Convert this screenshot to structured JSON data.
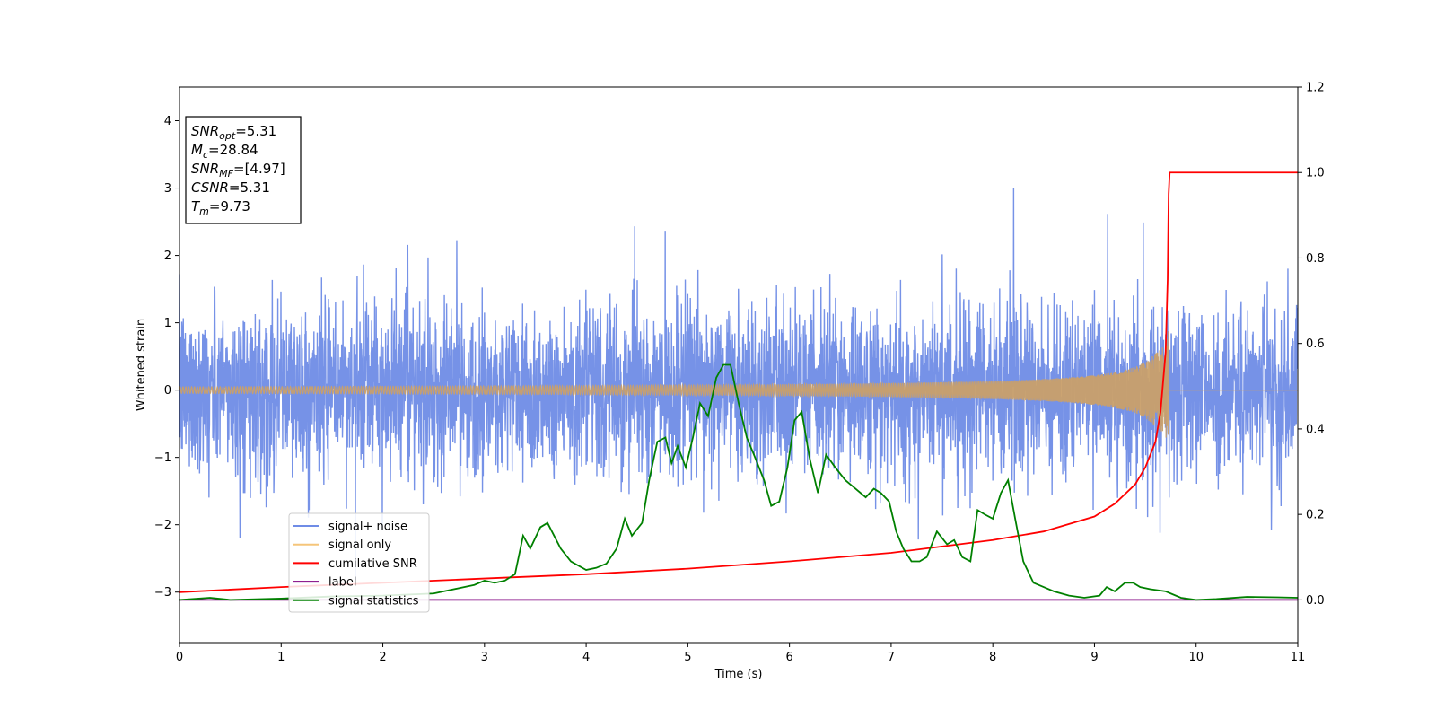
{
  "chart_data": {
    "type": "line",
    "xlabel": "Time (s)",
    "ylabel": "Whitened strain",
    "xlim": [
      0,
      11
    ],
    "ylim_left": [
      -3.75,
      4.5
    ],
    "ylim_right": [
      -0.1,
      1.2
    ],
    "x_ticks": [
      "0",
      "1",
      "2",
      "3",
      "4",
      "5",
      "6",
      "7",
      "8",
      "9",
      "10",
      "11"
    ],
    "y_ticks_left": [
      "−3",
      "−2",
      "−1",
      "0",
      "1",
      "2",
      "3",
      "4"
    ],
    "y_ticks_right": [
      "0.0",
      "0.2",
      "0.4",
      "0.6",
      "0.8",
      "1.0",
      "1.2"
    ],
    "annotation": {
      "lines": [
        {
          "var": "SNR",
          "sub": "opt",
          "val": "=5.31"
        },
        {
          "var": "M",
          "sub": "c",
          "val": "=28.84"
        },
        {
          "var": "SNR",
          "sub": "MF",
          "val": "=[4.97]"
        },
        {
          "var": "CSNR",
          "sub": "",
          "val": "=5.31"
        },
        {
          "var": "T",
          "sub": "m",
          "val": "=9.73"
        }
      ]
    },
    "legend_position": "lower-left",
    "series": [
      {
        "name": "signal+ noise",
        "color": "#6f8ce6",
        "axis": "left",
        "kind": "noise",
        "x_range": [
          0,
          11
        ],
        "typical_amplitude": 1.2,
        "peak_max": 3.0,
        "peak_min": -2.85
      },
      {
        "name": "signal only",
        "color": "#f5c57a",
        "axis": "left",
        "kind": "chirp",
        "x_range": [
          0,
          9.73
        ],
        "peak_amplitude": 0.9,
        "merger_time": 9.73
      },
      {
        "name": "cumilative SNR",
        "color": "#ff0000",
        "axis": "right",
        "x": [
          0,
          1,
          2,
          3,
          4,
          5,
          6,
          7,
          8,
          8.5,
          9,
          9.2,
          9.4,
          9.5,
          9.6,
          9.65,
          9.7,
          9.72,
          9.73,
          9.74,
          11
        ],
        "y": [
          0.018,
          0.03,
          0.04,
          0.05,
          0.06,
          0.073,
          0.09,
          0.11,
          0.14,
          0.16,
          0.195,
          0.225,
          0.27,
          0.31,
          0.37,
          0.44,
          0.58,
          0.75,
          0.95,
          1.0,
          1.0
        ]
      },
      {
        "name": "label",
        "color": "#800080",
        "axis": "right",
        "x": [
          0,
          11
        ],
        "y": [
          0.0,
          0.0
        ]
      },
      {
        "name": "signal statistics",
        "color": "#008000",
        "axis": "right",
        "x": [
          0,
          0.3,
          0.5,
          1.0,
          1.5,
          2.0,
          2.5,
          2.8,
          2.9,
          3.0,
          3.1,
          3.2,
          3.3,
          3.38,
          3.45,
          3.55,
          3.62,
          3.75,
          3.85,
          4.0,
          4.1,
          4.2,
          4.3,
          4.38,
          4.45,
          4.55,
          4.62,
          4.7,
          4.78,
          4.84,
          4.9,
          4.98,
          5.05,
          5.12,
          5.2,
          5.28,
          5.35,
          5.42,
          5.5,
          5.58,
          5.65,
          5.75,
          5.82,
          5.9,
          5.98,
          6.05,
          6.12,
          6.2,
          6.28,
          6.36,
          6.45,
          6.55,
          6.65,
          6.75,
          6.83,
          6.9,
          6.98,
          7.05,
          7.12,
          7.2,
          7.28,
          7.35,
          7.45,
          7.55,
          7.62,
          7.7,
          7.78,
          7.85,
          7.92,
          8.0,
          8.08,
          8.15,
          8.22,
          8.3,
          8.4,
          8.5,
          8.6,
          8.75,
          8.9,
          9.05,
          9.12,
          9.2,
          9.3,
          9.38,
          9.45,
          9.55,
          9.7,
          9.85,
          10.0,
          10.2,
          10.5,
          10.8,
          11.0
        ],
        "y": [
          0.0,
          0.005,
          0.0,
          0.003,
          0.008,
          0.01,
          0.015,
          0.03,
          0.035,
          0.045,
          0.04,
          0.045,
          0.06,
          0.15,
          0.12,
          0.17,
          0.18,
          0.12,
          0.09,
          0.07,
          0.075,
          0.085,
          0.12,
          0.19,
          0.15,
          0.18,
          0.28,
          0.37,
          0.38,
          0.32,
          0.36,
          0.31,
          0.38,
          0.46,
          0.43,
          0.52,
          0.55,
          0.55,
          0.46,
          0.38,
          0.34,
          0.28,
          0.22,
          0.23,
          0.31,
          0.42,
          0.44,
          0.33,
          0.25,
          0.34,
          0.31,
          0.28,
          0.26,
          0.24,
          0.26,
          0.25,
          0.23,
          0.16,
          0.12,
          0.09,
          0.09,
          0.1,
          0.16,
          0.13,
          0.14,
          0.1,
          0.09,
          0.21,
          0.2,
          0.19,
          0.25,
          0.28,
          0.19,
          0.09,
          0.04,
          0.03,
          0.02,
          0.01,
          0.005,
          0.01,
          0.03,
          0.02,
          0.04,
          0.04,
          0.03,
          0.025,
          0.02,
          0.005,
          0.0,
          0.002,
          0.007,
          0.006,
          0.005
        ]
      }
    ]
  }
}
